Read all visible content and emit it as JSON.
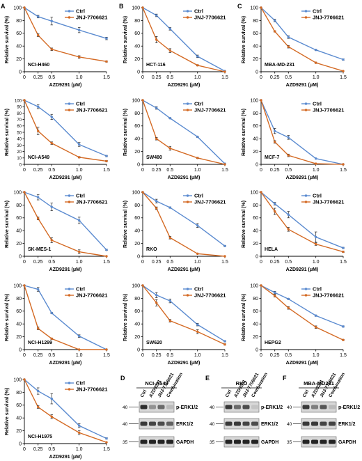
{
  "figure": {
    "blot_panel_title": [
      "NCI-A549",
      "RKO",
      "MBA-MD231"
    ],
    "blot_lane_labels": [
      "Ctrl",
      "AZD9291",
      "JNJ-7706621",
      "Combination"
    ],
    "blot_band_labels": [
      "p-ERK1/2",
      "ERK1/2",
      "GAPDH"
    ],
    "blot_markers": [
      "40",
      "40",
      "35"
    ]
  },
  "colors": {
    "ctrl": "#5b8bd0",
    "jnj": "#d46a24",
    "axis": "#000000"
  },
  "chart_data": [
    {
      "type": "line",
      "panel_letter": "A",
      "cell_line": "NCI-H460",
      "xlabel": "AZD9291 (μM)",
      "ylabel": "Relative survival (%)",
      "categories": [
        "0",
        "0.25",
        "0.5",
        "1.0",
        "1.5"
      ],
      "ylim": [
        0,
        100
      ],
      "yticks": [
        "0",
        "20",
        "40",
        "60",
        "80",
        "100"
      ],
      "series": [
        {
          "name": "Ctrl",
          "values": [
            100,
            86,
            79,
            65,
            52
          ],
          "errors": [
            0,
            2,
            6,
            4,
            2
          ]
        },
        {
          "name": "JNJ-7706621",
          "values": [
            100,
            57,
            35,
            23,
            16
          ],
          "errors": [
            0,
            2,
            2,
            2,
            1
          ]
        }
      ]
    },
    {
      "type": "line",
      "panel_letter": "B",
      "cell_line": "HCT-116",
      "xlabel": "AZD9291 (μM)",
      "ylabel": "Relative survival (%)",
      "categories": [
        "0",
        "0.25",
        "0.5",
        "1.0",
        "1.5"
      ],
      "ylim": [
        0,
        100
      ],
      "yticks": [
        "0",
        "20",
        "40",
        "60",
        "80",
        "100"
      ],
      "series": [
        {
          "name": "Ctrl",
          "values": [
            100,
            88,
            67,
            24,
            1
          ],
          "errors": [
            0,
            2,
            2,
            2,
            0
          ]
        },
        {
          "name": "JNJ-7706621",
          "values": [
            100,
            50,
            33,
            10,
            0
          ],
          "errors": [
            0,
            5,
            3,
            1,
            0
          ]
        }
      ]
    },
    {
      "type": "line",
      "panel_letter": "C",
      "cell_line": "MBA-MD-231",
      "xlabel": "AZD9291 (μM)",
      "ylabel": "Relative survival (%)",
      "categories": [
        "0",
        "0.25",
        "0.5",
        "1.0",
        "1.5"
      ],
      "ylim": [
        0,
        100
      ],
      "yticks": [
        "0",
        "20",
        "40",
        "60",
        "80",
        "100"
      ],
      "series": [
        {
          "name": "Ctrl",
          "values": [
            100,
            80,
            54,
            34,
            19
          ],
          "errors": [
            0,
            2,
            2,
            1,
            1
          ]
        },
        {
          "name": "JNJ-7706621",
          "values": [
            100,
            63,
            39,
            14,
            1
          ],
          "errors": [
            0,
            1,
            2,
            1,
            0
          ]
        }
      ]
    },
    {
      "type": "line",
      "cell_line": "NCI-A549",
      "xlabel": "AZD9291 (μM)",
      "ylabel": "Relative survival (%)",
      "categories": [
        "0",
        "0.25",
        "0.5",
        "1.0",
        "1.5"
      ],
      "ylim": [
        0,
        100
      ],
      "yticks": [
        "0",
        "10",
        "20",
        "30",
        "40",
        "50",
        "60",
        "70",
        "80",
        "90",
        "100"
      ],
      "series": [
        {
          "name": "Ctrl",
          "values": [
            100,
            90,
            74,
            31,
            13
          ],
          "errors": [
            0,
            3,
            4,
            3,
            1
          ]
        },
        {
          "name": "JNJ-7706621",
          "values": [
            100,
            52,
            33,
            11,
            5
          ],
          "errors": [
            0,
            6,
            2,
            1,
            1
          ]
        }
      ]
    },
    {
      "type": "line",
      "cell_line": "SW480",
      "xlabel": "AZD9291 (μM)",
      "ylabel": "Relative survival (%)",
      "categories": [
        "0",
        "0.25",
        "0.5",
        "1.0",
        "1.5"
      ],
      "ylim": [
        0,
        100
      ],
      "yticks": [
        "0",
        "20",
        "40",
        "60",
        "80",
        "100"
      ],
      "series": [
        {
          "name": "Ctrl",
          "values": [
            100,
            88,
            72,
            43,
            1
          ],
          "errors": [
            0,
            2,
            1,
            1,
            0
          ]
        },
        {
          "name": "JNJ-7706621",
          "values": [
            100,
            40,
            25,
            10,
            0
          ],
          "errors": [
            0,
            2,
            3,
            1,
            0
          ]
        }
      ]
    },
    {
      "type": "line",
      "cell_line": "MCF-7",
      "xlabel": "AZD9291 (μM)",
      "ylabel": "Relative survival (%)",
      "categories": [
        "0",
        "0.25",
        "0.5",
        "1.0",
        "1.5"
      ],
      "ylim": [
        0,
        100
      ],
      "yticks": [
        "0",
        "20",
        "40",
        "60",
        "80",
        "100"
      ],
      "series": [
        {
          "name": "Ctrl",
          "values": [
            100,
            52,
            42,
            9,
            0
          ],
          "errors": [
            0,
            4,
            3,
            0,
            0
          ]
        },
        {
          "name": "JNJ-7706621",
          "values": [
            100,
            35,
            14,
            1,
            0
          ],
          "errors": [
            0,
            2,
            2,
            0,
            0
          ]
        }
      ]
    },
    {
      "type": "line",
      "cell_line": "SK-MES-1",
      "xlabel": "AZD9291 (μM)",
      "ylabel": "Relative survival (%)",
      "categories": [
        "0",
        "0.25",
        "0.5",
        "1.0",
        "1.5"
      ],
      "ylim": [
        0,
        100
      ],
      "yticks": [
        "0",
        "20",
        "40",
        "60",
        "80",
        "100"
      ],
      "series": [
        {
          "name": "Ctrl",
          "values": [
            100,
            92,
            77,
            56,
            10
          ],
          "errors": [
            0,
            4,
            6,
            5,
            1
          ]
        },
        {
          "name": "JNJ-7706621",
          "values": [
            100,
            59,
            25,
            7,
            0
          ],
          "errors": [
            0,
            2,
            4,
            3,
            0
          ]
        }
      ]
    },
    {
      "type": "line",
      "cell_line": "RKO",
      "xlabel": "AZD9291 (μM)",
      "ylabel": "Relative survival (%)",
      "categories": [
        "0",
        "0.25",
        "0.5",
        "1.0",
        "1.5"
      ],
      "ylim": [
        0,
        100
      ],
      "yticks": [
        "0",
        "20",
        "40",
        "60",
        "80",
        "100"
      ],
      "series": [
        {
          "name": "Ctrl",
          "values": [
            100,
            86,
            76,
            48,
            16
          ],
          "errors": [
            0,
            3,
            1,
            3,
            1
          ]
        },
        {
          "name": "JNJ-7706621",
          "values": [
            100,
            75,
            29,
            4,
            0
          ],
          "errors": [
            0,
            2,
            2,
            0,
            0
          ]
        }
      ]
    },
    {
      "type": "line",
      "cell_line": "HELA",
      "xlabel": "AZD9291 (μM)",
      "ylabel": "Relative survival (%)",
      "categories": [
        "0",
        "0.25",
        "0.5",
        "1.0",
        "1.5"
      ],
      "ylim": [
        0,
        100
      ],
      "yticks": [
        "0",
        "20",
        "40",
        "60",
        "80",
        "100"
      ],
      "series": [
        {
          "name": "Ctrl",
          "values": [
            100,
            82,
            65,
            30,
            13
          ],
          "errors": [
            0,
            2,
            5,
            8,
            1
          ]
        },
        {
          "name": "JNJ-7706621",
          "values": [
            100,
            70,
            42,
            19,
            7
          ],
          "errors": [
            0,
            5,
            3,
            2,
            1
          ]
        }
      ]
    },
    {
      "type": "line",
      "cell_line": "NCI-H1299",
      "xlabel": "AZD9291 (μM)",
      "ylabel": "Relative survival (%)",
      "categories": [
        "0",
        "0.25",
        "0.5",
        "1.0",
        "1.5"
      ],
      "ylim": [
        0,
        100
      ],
      "yticks": [
        "0",
        "20",
        "40",
        "60",
        "80",
        "100"
      ],
      "series": [
        {
          "name": "Ctrl",
          "values": [
            100,
            94,
            57,
            21,
            0
          ],
          "errors": [
            0,
            3,
            1,
            2,
            0
          ]
        },
        {
          "name": "JNJ-7706621",
          "values": [
            100,
            33,
            17,
            0,
            0
          ],
          "errors": [
            0,
            2,
            1,
            0,
            0
          ]
        }
      ]
    },
    {
      "type": "line",
      "cell_line": "SW620",
      "xlabel": "AZD9291 (μM)",
      "ylabel": "Relative survival (%)",
      "categories": [
        "0",
        "0.25",
        "0.5",
        "1.0",
        "1.5"
      ],
      "ylim": [
        0,
        100
      ],
      "yticks": [
        "0",
        "20",
        "40",
        "60",
        "80",
        "100"
      ],
      "series": [
        {
          "name": "Ctrl",
          "values": [
            100,
            85,
            76,
            39,
            13
          ],
          "errors": [
            0,
            4,
            3,
            2,
            1
          ]
        },
        {
          "name": "JNJ-7706621",
          "values": [
            100,
            73,
            45,
            28,
            8
          ],
          "errors": [
            0,
            5,
            2,
            3,
            1
          ]
        }
      ]
    },
    {
      "type": "line",
      "cell_line": "HEPG2",
      "xlabel": "AZD9291 (μM)",
      "ylabel": "Relative survival (%)",
      "categories": [
        "0",
        "0.25",
        "0.5",
        "1.0",
        "1.5"
      ],
      "ylim": [
        0,
        100
      ],
      "yticks": [
        "0",
        "20",
        "40",
        "60",
        "80",
        "100"
      ],
      "series": [
        {
          "name": "Ctrl",
          "values": [
            100,
            89,
            79,
            53,
            36
          ],
          "errors": [
            0,
            2,
            1,
            1,
            1
          ]
        },
        {
          "name": "JNJ-7706621",
          "values": [
            100,
            84,
            65,
            35,
            15
          ],
          "errors": [
            0,
            2,
            2,
            2,
            1
          ]
        }
      ]
    },
    {
      "type": "line",
      "cell_line": "NCI-H1975",
      "xlabel": "AZD9291 (μM)",
      "ylabel": "Relative survival (%)",
      "categories": [
        "0",
        "0.25",
        "0.5",
        "1.0",
        "1.5"
      ],
      "ylim": [
        0,
        100
      ],
      "yticks": [
        "0",
        "20",
        "40",
        "60",
        "80",
        "100"
      ],
      "series": [
        {
          "name": "Ctrl",
          "values": [
            100,
            82,
            70,
            28,
            8
          ],
          "errors": [
            0,
            5,
            8,
            3,
            1
          ]
        },
        {
          "name": "JNJ-7706621",
          "values": [
            100,
            57,
            42,
            17,
            2
          ],
          "errors": [
            0,
            2,
            3,
            3,
            0
          ]
        }
      ]
    }
  ]
}
